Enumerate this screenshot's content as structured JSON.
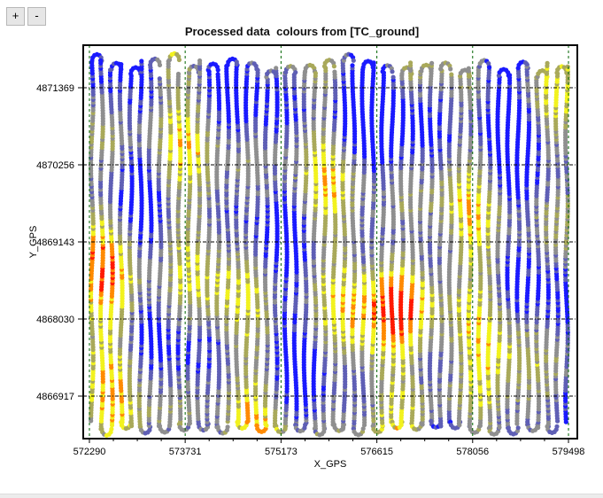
{
  "toolbar": {
    "zoom_in_label": "+",
    "zoom_out_label": "-"
  },
  "chart_data": {
    "type": "scatter",
    "title": "Processed data  colours from [TC_ground]",
    "xlabel": "X_GPS",
    "ylabel": "Y_GPS",
    "xlim": [
      572197,
      579631
    ],
    "ylim": [
      4866303,
      4871983
    ],
    "xticks": [
      572290,
      573731,
      575173,
      576615,
      578056,
      579498
    ],
    "yticks": [
      4866917,
      4868030,
      4869143,
      4870256,
      4871369
    ],
    "xtick_labels": [
      "572290",
      "573731",
      "575173",
      "576615",
      "578056",
      "579498"
    ],
    "ytick_labels": [
      "4866917",
      "4868030",
      "4869143",
      "4870256",
      "4871369"
    ],
    "grid": true,
    "legend": "none",
    "color_scale": [
      "#1a1aff",
      "#5f5fb5",
      "#8f8f8f",
      "#a9a95a",
      "#f2f21e",
      "#ff8a00",
      "#ff1a00"
    ],
    "grid_color": "#006400"
  }
}
